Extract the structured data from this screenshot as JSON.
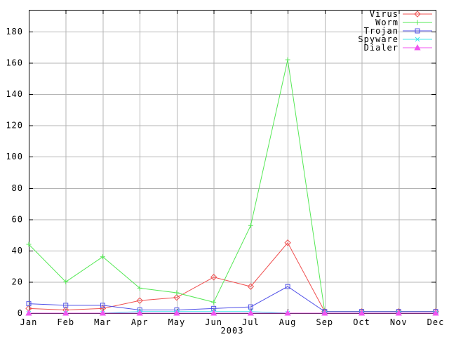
{
  "chart_data": {
    "type": "line",
    "title": "",
    "xlabel": "2003",
    "ylabel": "",
    "categories": [
      "Jan",
      "Feb",
      "Mar",
      "Apr",
      "May",
      "Jun",
      "Jul",
      "Aug",
      "Sep",
      "Oct",
      "Nov",
      "Dec"
    ],
    "y_ticks": [
      0,
      20,
      40,
      60,
      80,
      100,
      120,
      140,
      160,
      180
    ],
    "ylim": [
      0,
      194
    ],
    "grid": true,
    "legend_position": "top-right-inside",
    "series": [
      {
        "name": "Virus",
        "color": "#f05050",
        "marker": "diamond-open",
        "values": [
          3,
          2,
          3,
          8,
          10,
          23,
          17,
          45,
          1,
          1,
          1,
          1
        ]
      },
      {
        "name": "Worm",
        "color": "#55e855",
        "marker": "plus",
        "values": [
          44,
          20,
          36,
          16,
          13,
          7,
          56,
          162,
          1,
          1,
          1,
          1
        ]
      },
      {
        "name": "Trojan",
        "color": "#5050e8",
        "marker": "square-open",
        "values": [
          6,
          5,
          5,
          2,
          2,
          3,
          4,
          17,
          1,
          1,
          1,
          1
        ]
      },
      {
        "name": "Spyware",
        "color": "#40e8e8",
        "marker": "cross",
        "values": [
          0,
          0,
          0,
          1,
          1,
          1,
          1,
          0,
          0,
          0,
          0,
          0
        ]
      },
      {
        "name": "Dialer",
        "color": "#f055f0",
        "marker": "triangle-filled",
        "values": [
          0,
          0,
          0,
          0,
          0,
          0,
          0,
          0,
          0,
          0,
          0,
          0
        ]
      }
    ]
  },
  "colors": {
    "background": "#ffffff",
    "grid": "#b4b4b4",
    "border": "#000000",
    "tick_label": "#000000"
  }
}
